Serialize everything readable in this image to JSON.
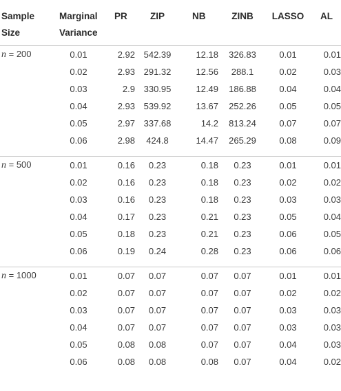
{
  "headers": {
    "sample_size": [
      "Sample",
      "Size"
    ],
    "marginal_variance": [
      "Marginal",
      "Variance"
    ],
    "pr": "PR",
    "zip": "ZIP",
    "nb": "NB",
    "zinb": "ZINB",
    "lasso": "LASSO",
    "al": "AL"
  },
  "groups": [
    {
      "n_symbol": "n",
      "n_value": " = 200",
      "rows": [
        [
          "0.01",
          "2.92",
          "542.39",
          "12.18",
          "326.83",
          "0.01",
          "0.01"
        ],
        [
          "0.02",
          "2.93",
          "291.32",
          "12.56",
          "288.1",
          "0.02",
          "0.03"
        ],
        [
          "0.03",
          "2.9",
          "330.95",
          "12.49",
          "186.88",
          "0.04",
          "0.04"
        ],
        [
          "0.04",
          "2.93",
          "539.92",
          "13.67",
          "252.26",
          "0.05",
          "0.05"
        ],
        [
          "0.05",
          "2.97",
          "337.68",
          "14.2",
          "813.24",
          "0.07",
          "0.07"
        ],
        [
          "0.06",
          "2.98",
          "424.8",
          "14.47",
          "265.29",
          "0.08",
          "0.09"
        ]
      ]
    },
    {
      "n_symbol": "n",
      "n_value": " = 500",
      "rows": [
        [
          "0.01",
          "0.16",
          "0.23",
          "0.18",
          "0.23",
          "0.01",
          "0.01"
        ],
        [
          "0.02",
          "0.16",
          "0.23",
          "0.18",
          "0.23",
          "0.02",
          "0.02"
        ],
        [
          "0.03",
          "0.16",
          "0.23",
          "0.18",
          "0.23",
          "0.03",
          "0.03"
        ],
        [
          "0.04",
          "0.17",
          "0.23",
          "0.21",
          "0.23",
          "0.05",
          "0.04"
        ],
        [
          "0.05",
          "0.18",
          "0.23",
          "0.21",
          "0.23",
          "0.06",
          "0.05"
        ],
        [
          "0.06",
          "0.19",
          "0.24",
          "0.28",
          "0.23",
          "0.06",
          "0.06"
        ]
      ]
    },
    {
      "n_symbol": "n",
      "n_value": " = 1000",
      "rows": [
        [
          "0.01",
          "0.07",
          "0.07",
          "0.07",
          "0.07",
          "0.01",
          "0.01"
        ],
        [
          "0.02",
          "0.07",
          "0.07",
          "0.07",
          "0.07",
          "0.02",
          "0.02"
        ],
        [
          "0.03",
          "0.07",
          "0.07",
          "0.07",
          "0.07",
          "0.03",
          "0.03"
        ],
        [
          "0.04",
          "0.07",
          "0.07",
          "0.07",
          "0.07",
          "0.03",
          "0.03"
        ],
        [
          "0.05",
          "0.08",
          "0.08",
          "0.07",
          "0.07",
          "0.04",
          "0.03"
        ],
        [
          "0.06",
          "0.08",
          "0.08",
          "0.08",
          "0.07",
          "0.04",
          "0.02"
        ]
      ]
    }
  ]
}
